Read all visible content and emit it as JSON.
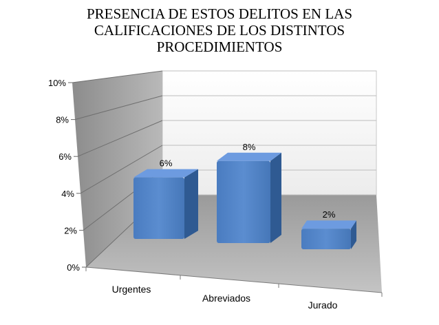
{
  "chart_data": {
    "type": "bar",
    "title": [
      "PRESENCIA DE ESTOS DELITOS EN LAS",
      "CALIFICACIONES DE LOS DISTINTOS",
      "PROCEDIMIENTOS"
    ],
    "categories": [
      "Urgentes",
      "Abreviados",
      "Jurado"
    ],
    "values": [
      6,
      8,
      2
    ],
    "data_labels": [
      "6%",
      "8%",
      "2%"
    ],
    "y_ticks": [
      "0%",
      "2%",
      "4%",
      "6%",
      "8%",
      "10%"
    ],
    "ylim": [
      0,
      10
    ],
    "grid": true,
    "style": "3d-column",
    "colors": {
      "bar_front": "#4f81bd",
      "bar_top": "#6d9be0",
      "bar_side": "#2f5a92",
      "back_wall": "#f5f5f5",
      "side_wall": "#9e9e9e",
      "floor": "#a6a6a6"
    }
  }
}
